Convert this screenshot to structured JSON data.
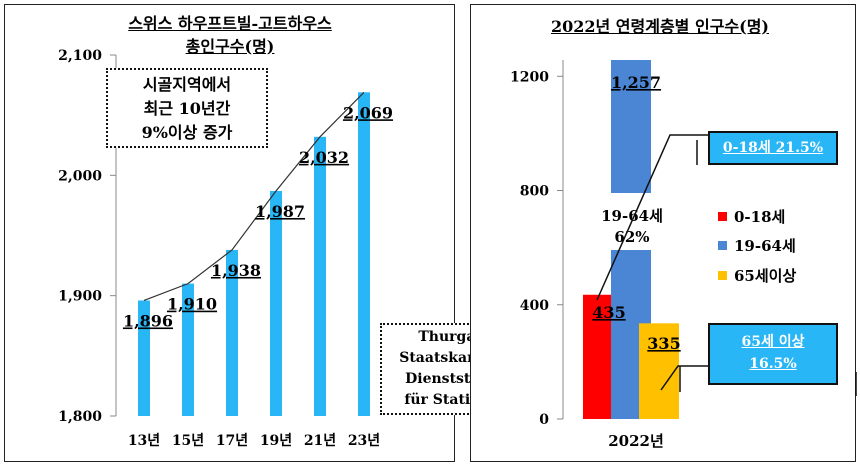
{
  "chart_data": [
    {
      "type": "bar",
      "title": "스위스 하우프트빌-고트하우스",
      "subtitle": "총인구수(명)",
      "categories": [
        "13년",
        "15년",
        "17년",
        "19년",
        "21년",
        "23년"
      ],
      "values": [
        1896,
        1910,
        1938,
        1987,
        2032,
        2069
      ],
      "data_labels": [
        "1,896",
        "1,910",
        "1,938",
        "1,987",
        "2,032",
        "2,069"
      ],
      "ylim": [
        1800,
        2100
      ],
      "yticks": [
        1800,
        1900,
        2000,
        2100
      ],
      "ytick_labels": [
        "1,800",
        "1,900",
        "2,000",
        "2,100"
      ],
      "bar_color": "#29b6f6",
      "trend_line": true,
      "annotation": [
        "시골지역에서",
        "최근 10년간",
        "9%이상 증가"
      ],
      "source": [
        "Thurgau",
        "Staatskanzlei",
        "Dienststelle",
        "für Statistik"
      ]
    },
    {
      "type": "bar",
      "title": "2022년 연령계층별 인구수(명)",
      "categories": [
        "2022년"
      ],
      "series": [
        {
          "name": "0-18세",
          "value": 435,
          "label": "435",
          "color": "#ff0000"
        },
        {
          "name": "19-64세",
          "value": 1257,
          "label": "1,257",
          "color": "#4a86d4"
        },
        {
          "name": "65세이상",
          "value": 335,
          "label": "335",
          "color": "#ffc000"
        }
      ],
      "ylim": [
        0,
        1257
      ],
      "yticks": [
        0,
        400,
        800,
        1200
      ],
      "ytick_labels": [
        "0",
        "400",
        "800",
        "1200"
      ],
      "legend_position": "right",
      "mid_label": [
        "19-64세",
        "62%"
      ],
      "callouts": [
        "0-18세 21.5%",
        "65세 이상",
        "16.5%"
      ]
    }
  ]
}
